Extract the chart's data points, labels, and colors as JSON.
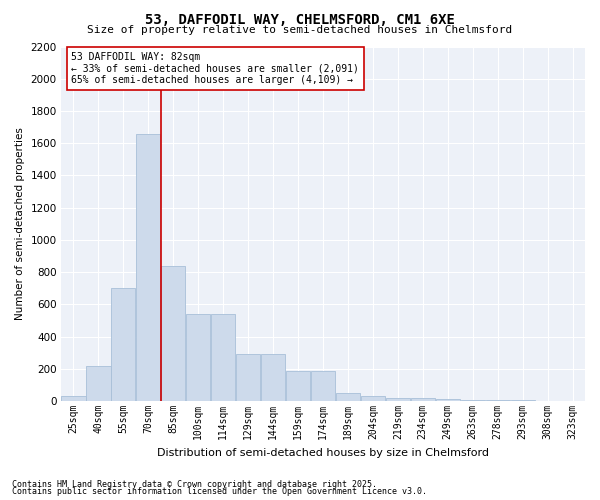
{
  "title": "53, DAFFODIL WAY, CHELMSFORD, CM1 6XE",
  "subtitle": "Size of property relative to semi-detached houses in Chelmsford",
  "xlabel": "Distribution of semi-detached houses by size in Chelmsford",
  "ylabel": "Number of semi-detached properties",
  "categories": [
    "25sqm",
    "40sqm",
    "55sqm",
    "70sqm",
    "85sqm",
    "100sqm",
    "114sqm",
    "129sqm",
    "144sqm",
    "159sqm",
    "174sqm",
    "189sqm",
    "204sqm",
    "219sqm",
    "234sqm",
    "249sqm",
    "263sqm",
    "278sqm",
    "293sqm",
    "308sqm",
    "323sqm"
  ],
  "values": [
    30,
    220,
    700,
    1660,
    840,
    540,
    540,
    295,
    295,
    185,
    185,
    50,
    30,
    20,
    20,
    15,
    10,
    5,
    5,
    3,
    3
  ],
  "bar_color": "#cddaeb",
  "bar_edge_color": "#a8bfd8",
  "vline_color": "#cc0000",
  "vline_x_index": 3.5,
  "annotation_title": "53 DAFFODIL WAY: 82sqm",
  "annotation_line1": "← 33% of semi-detached houses are smaller (2,091)",
  "annotation_line2": "65% of semi-detached houses are larger (4,109) →",
  "annotation_box_facecolor": "#ffffff",
  "annotation_box_edgecolor": "#cc0000",
  "ylim": [
    0,
    2200
  ],
  "yticks": [
    0,
    200,
    400,
    600,
    800,
    1000,
    1200,
    1400,
    1600,
    1800,
    2000,
    2200
  ],
  "bg_color": "#edf1f8",
  "grid_color": "#ffffff",
  "footer1": "Contains HM Land Registry data © Crown copyright and database right 2025.",
  "footer2": "Contains public sector information licensed under the Open Government Licence v3.0.",
  "title_fontsize": 10,
  "subtitle_fontsize": 8,
  "ylabel_fontsize": 7.5,
  "xlabel_fontsize": 8,
  "ytick_fontsize": 7.5,
  "xtick_fontsize": 7,
  "ann_fontsize": 7,
  "footer_fontsize": 6
}
